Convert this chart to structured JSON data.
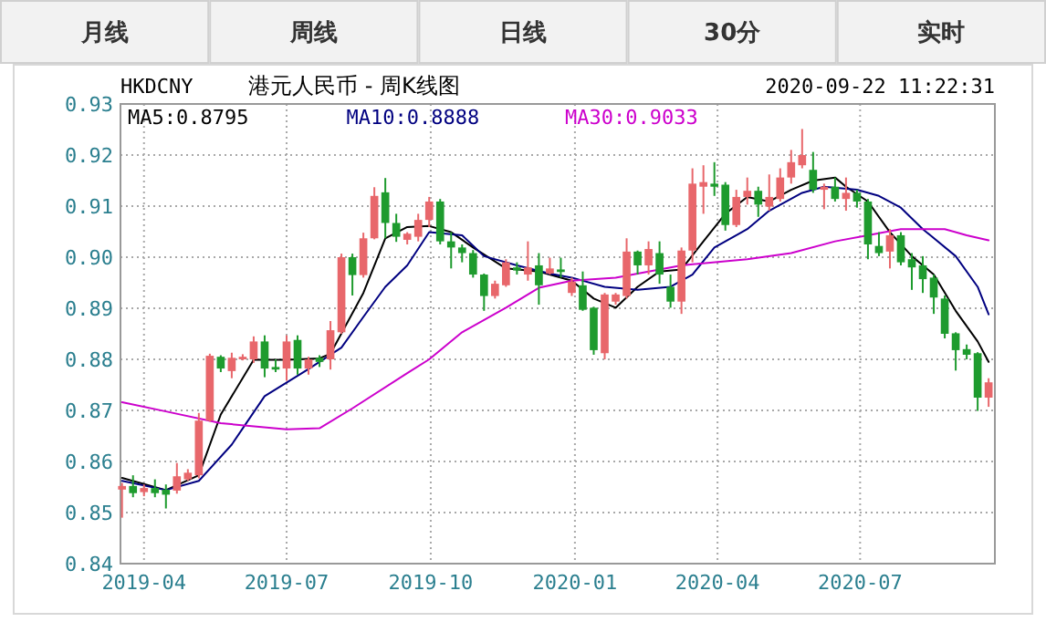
{
  "chart_data": {
    "type": "candlestick",
    "title": "港元人民币 - 周K线图",
    "subtitle": "HKDCNY",
    "annotations": [
      "2020-09-22 11:22:31",
      "月线",
      "周线",
      "日线",
      "30分",
      "实时"
    ],
    "x": [
      "2019-03-18",
      "2019-03-25",
      "2019-04-01",
      "2019-04-08",
      "2019-04-15",
      "2019-04-22",
      "2019-04-29",
      "2019-05-06",
      "2019-05-13",
      "2019-05-20",
      "2019-05-27",
      "2019-06-03",
      "2019-06-10",
      "2019-06-17",
      "2019-06-24",
      "2019-07-01",
      "2019-07-08",
      "2019-07-15",
      "2019-07-22",
      "2019-07-29",
      "2019-08-05",
      "2019-08-12",
      "2019-08-19",
      "2019-08-26",
      "2019-09-02",
      "2019-09-09",
      "2019-09-16",
      "2019-09-23",
      "2019-09-30",
      "2019-10-07",
      "2019-10-14",
      "2019-10-21",
      "2019-10-28",
      "2019-11-04",
      "2019-11-11",
      "2019-11-18",
      "2019-11-25",
      "2019-12-02",
      "2019-12-09",
      "2019-12-16",
      "2019-12-23",
      "2019-12-30",
      "2020-01-06",
      "2020-01-13",
      "2020-01-20",
      "2020-01-27",
      "2020-02-03",
      "2020-02-10",
      "2020-02-17",
      "2020-02-24",
      "2020-03-02",
      "2020-03-09",
      "2020-03-16",
      "2020-03-23",
      "2020-03-30",
      "2020-04-06",
      "2020-04-13",
      "2020-04-20",
      "2020-04-27",
      "2020-05-04",
      "2020-05-11",
      "2020-05-18",
      "2020-05-25",
      "2020-06-01",
      "2020-06-08",
      "2020-06-15",
      "2020-06-22",
      "2020-06-29",
      "2020-07-06",
      "2020-07-13",
      "2020-07-20",
      "2020-07-27",
      "2020-08-03",
      "2020-08-10",
      "2020-08-17",
      "2020-08-24",
      "2020-08-31",
      "2020-09-07",
      "2020-09-14",
      "2020-09-21"
    ],
    "ohlc": [
      [
        0.8545,
        0.8558,
        0.849,
        0.8552
      ],
      [
        0.8552,
        0.8573,
        0.853,
        0.8538
      ],
      [
        0.854,
        0.8555,
        0.8532,
        0.8548
      ],
      [
        0.8548,
        0.8565,
        0.853,
        0.8538
      ],
      [
        0.8545,
        0.8555,
        0.8508,
        0.8535
      ],
      [
        0.8543,
        0.8597,
        0.8537,
        0.8571
      ],
      [
        0.8565,
        0.8585,
        0.8562,
        0.8578
      ],
      [
        0.8573,
        0.8695,
        0.8567,
        0.868
      ],
      [
        0.868,
        0.8811,
        0.8678,
        0.8807
      ],
      [
        0.8805,
        0.8808,
        0.8775,
        0.8782
      ],
      [
        0.8777,
        0.8813,
        0.8763,
        0.8803
      ],
      [
        0.88,
        0.881,
        0.8798,
        0.8805
      ],
      [
        0.88,
        0.8845,
        0.8793,
        0.8835
      ],
      [
        0.8835,
        0.8847,
        0.8765,
        0.8782
      ],
      [
        0.8785,
        0.88,
        0.8775,
        0.878
      ],
      [
        0.8782,
        0.8847,
        0.8758,
        0.8835
      ],
      [
        0.8838,
        0.8847,
        0.877,
        0.8782
      ],
      [
        0.8782,
        0.8805,
        0.877,
        0.88
      ],
      [
        0.8803,
        0.8808,
        0.8785,
        0.8795
      ],
      [
        0.88,
        0.8875,
        0.878,
        0.8857
      ],
      [
        0.8853,
        0.9007,
        0.885,
        0.9
      ],
      [
        0.9,
        0.9007,
        0.8925,
        0.8965
      ],
      [
        0.8965,
        0.9048,
        0.896,
        0.9037
      ],
      [
        0.9037,
        0.9137,
        0.9035,
        0.912
      ],
      [
        0.9127,
        0.9155,
        0.9037,
        0.9067
      ],
      [
        0.9067,
        0.9085,
        0.903,
        0.904
      ],
      [
        0.9034,
        0.9049,
        0.9025,
        0.9046
      ],
      [
        0.904,
        0.9085,
        0.9031,
        0.9073
      ],
      [
        0.9073,
        0.9118,
        0.9059,
        0.9109
      ],
      [
        0.9109,
        0.9114,
        0.9025,
        0.9031
      ],
      [
        0.9031,
        0.9049,
        0.8978,
        0.9019
      ],
      [
        0.9019,
        0.9025,
        0.899,
        0.9008
      ],
      [
        0.9008,
        0.9014,
        0.896,
        0.8966
      ],
      [
        0.8966,
        0.8968,
        0.8895,
        0.8924
      ],
      [
        0.8924,
        0.8954,
        0.8919,
        0.8948
      ],
      [
        0.8945,
        0.8996,
        0.8942,
        0.899
      ],
      [
        0.898,
        0.899,
        0.8966,
        0.8974
      ],
      [
        0.8966,
        0.9031,
        0.8954,
        0.898
      ],
      [
        0.8984,
        0.9008,
        0.8907,
        0.8945
      ],
      [
        0.8968,
        0.8999,
        0.8966,
        0.8978
      ],
      [
        0.8976,
        0.8999,
        0.896,
        0.8971
      ],
      [
        0.893,
        0.896,
        0.8924,
        0.8952
      ],
      [
        0.8945,
        0.8972,
        0.8895,
        0.8897
      ],
      [
        0.8901,
        0.8903,
        0.8809,
        0.8818
      ],
      [
        0.8812,
        0.893,
        0.88,
        0.8927
      ],
      [
        0.8913,
        0.893,
        0.8907,
        0.8927
      ],
      [
        0.8924,
        0.9037,
        0.8919,
        0.9011
      ],
      [
        0.9011,
        0.9013,
        0.8966,
        0.8984
      ],
      [
        0.8984,
        0.9031,
        0.8966,
        0.9016
      ],
      [
        0.9008,
        0.9031,
        0.8948,
        0.8966
      ],
      [
        0.8942,
        0.8966,
        0.8901,
        0.8913
      ],
      [
        0.8913,
        0.9019,
        0.8889,
        0.9013
      ],
      [
        0.9013,
        0.9174,
        0.899,
        0.9144
      ],
      [
        0.9138,
        0.918,
        0.9085,
        0.9147
      ],
      [
        0.9144,
        0.9186,
        0.912,
        0.9138
      ],
      [
        0.9142,
        0.9147,
        0.9052,
        0.9063
      ],
      [
        0.9063,
        0.9132,
        0.9059,
        0.9118
      ],
      [
        0.9118,
        0.9156,
        0.9103,
        0.913
      ],
      [
        0.913,
        0.9138,
        0.9079,
        0.9103
      ],
      [
        0.9099,
        0.9162,
        0.9091,
        0.9118
      ],
      [
        0.9114,
        0.9174,
        0.9109,
        0.9156
      ],
      [
        0.9156,
        0.921,
        0.9144,
        0.9186
      ],
      [
        0.918,
        0.9251,
        0.9174,
        0.92
      ],
      [
        0.9171,
        0.9206,
        0.9126,
        0.9132
      ],
      [
        0.9132,
        0.9144,
        0.9094,
        0.9138
      ],
      [
        0.9138,
        0.9156,
        0.9109,
        0.9114
      ],
      [
        0.9114,
        0.9156,
        0.9091,
        0.9126
      ],
      [
        0.9126,
        0.9132,
        0.9097,
        0.9109
      ],
      [
        0.9109,
        0.9114,
        0.8996,
        0.9025
      ],
      [
        0.9022,
        0.9049,
        0.9002,
        0.9008
      ],
      [
        0.9011,
        0.9055,
        0.8978,
        0.9043
      ],
      [
        0.9043,
        0.9049,
        0.8984,
        0.899
      ],
      [
        0.8996,
        0.9008,
        0.8936,
        0.898
      ],
      [
        0.8984,
        0.9002,
        0.893,
        0.8957
      ],
      [
        0.896,
        0.8966,
        0.8889,
        0.8921
      ],
      [
        0.8919,
        0.8925,
        0.8841,
        0.885
      ],
      [
        0.8851,
        0.8853,
        0.8778,
        0.8818
      ],
      [
        0.882,
        0.8829,
        0.88,
        0.8809
      ],
      [
        0.8812,
        0.8814,
        0.8699,
        0.8725
      ],
      [
        0.8725,
        0.8763,
        0.8707,
        0.8755
      ]
    ],
    "colors": [
      "#e8676b",
      "#1e9b2e",
      "#e8676b",
      "#1e9b2e",
      "#1e9b2e",
      "#e8676b",
      "#e8676b",
      "#e8676b",
      "#e8676b",
      "#1e9b2e",
      "#e8676b",
      "#e8676b",
      "#e8676b",
      "#1e9b2e",
      "#1e9b2e",
      "#e8676b",
      "#1e9b2e",
      "#e8676b",
      "#1e9b2e",
      "#e8676b",
      "#e8676b",
      "#1e9b2e",
      "#e8676b",
      "#e8676b",
      "#1e9b2e",
      "#1e9b2e",
      "#e8676b",
      "#e8676b",
      "#e8676b",
      "#1e9b2e",
      "#1e9b2e",
      "#1e9b2e",
      "#1e9b2e",
      "#1e9b2e",
      "#e8676b",
      "#e8676b",
      "#1e9b2e",
      "#e8676b",
      "#1e9b2e",
      "#e8676b",
      "#1e9b2e",
      "#e8676b",
      "#1e9b2e",
      "#1e9b2e",
      "#e8676b",
      "#e8676b",
      "#e8676b",
      "#1e9b2e",
      "#e8676b",
      "#1e9b2e",
      "#1e9b2e",
      "#e8676b",
      "#e8676b",
      "#e8676b",
      "#1e9b2e",
      "#1e9b2e",
      "#e8676b",
      "#e8676b",
      "#1e9b2e",
      "#e8676b",
      "#e8676b",
      "#e8676b",
      "#e8676b",
      "#1e9b2e",
      "#e8676b",
      "#1e9b2e",
      "#e8676b",
      "#1e9b2e",
      "#1e9b2e",
      "#1e9b2e",
      "#e8676b",
      "#1e9b2e",
      "#1e9b2e",
      "#1e9b2e",
      "#1e9b2e",
      "#1e9b2e",
      "#1e9b2e",
      "#1e9b2e",
      "#1e9b2e",
      "#e8676b"
    ],
    "series": [
      {
        "name": "MA5:0.8795",
        "type": "line",
        "color": "#000000",
        "x": [
          "2019-03-18",
          "2019-04-15",
          "2019-05-06",
          "2019-05-20",
          "2019-06-10",
          "2019-07-01",
          "2019-07-22",
          "2019-07-29",
          "2019-08-19",
          "2019-09-02",
          "2019-09-16",
          "2019-09-30",
          "2019-10-14",
          "2019-10-28",
          "2019-11-18",
          "2019-12-09",
          "2019-12-30",
          "2020-01-13",
          "2020-01-27",
          "2020-02-10",
          "2020-02-24",
          "2020-03-09",
          "2020-03-23",
          "2020-04-06",
          "2020-04-20",
          "2020-05-04",
          "2020-05-18",
          "2020-06-01",
          "2020-06-15",
          "2020-06-22",
          "2020-07-06",
          "2020-07-20",
          "2020-08-03",
          "2020-08-17",
          "2020-08-31",
          "2020-09-14",
          "2020-09-21"
        ],
        "values": [
          0.8568,
          0.8544,
          0.8573,
          0.8692,
          0.8799,
          0.8799,
          0.8802,
          0.8811,
          0.893,
          0.9037,
          0.9059,
          0.9061,
          0.9049,
          0.9019,
          0.8978,
          0.8972,
          0.8954,
          0.8919,
          0.8901,
          0.8942,
          0.8972,
          0.8976,
          0.9031,
          0.9085,
          0.9118,
          0.9109,
          0.9132,
          0.915,
          0.9156,
          0.9138,
          0.9109,
          0.9049,
          0.9002,
          0.8966,
          0.8895,
          0.8835,
          0.8795
        ]
      },
      {
        "name": "MA10:0.8888",
        "type": "line",
        "color": "#000080",
        "x": [
          "2019-03-18",
          "2019-04-15",
          "2019-05-06",
          "2019-05-27",
          "2019-06-17",
          "2019-07-15",
          "2019-08-05",
          "2019-08-19",
          "2019-09-02",
          "2019-09-16",
          "2019-09-30",
          "2019-10-21",
          "2019-11-04",
          "2019-11-25",
          "2019-12-16",
          "2019-12-30",
          "2020-01-20",
          "2020-02-10",
          "2020-03-02",
          "2020-03-16",
          "2020-03-30",
          "2020-04-20",
          "2020-05-04",
          "2020-05-25",
          "2020-06-08",
          "2020-06-29",
          "2020-07-13",
          "2020-07-27",
          "2020-08-10",
          "2020-08-31",
          "2020-09-14",
          "2020-09-21"
        ],
        "values": [
          0.8562,
          0.8544,
          0.8562,
          0.8633,
          0.8728,
          0.8781,
          0.8823,
          0.8883,
          0.8942,
          0.8984,
          0.9049,
          0.9043,
          0.9002,
          0.8984,
          0.8968,
          0.896,
          0.8942,
          0.8936,
          0.8942,
          0.8966,
          0.9019,
          0.9055,
          0.9091,
          0.9126,
          0.9138,
          0.9132,
          0.912,
          0.9097,
          0.9055,
          0.9002,
          0.8942,
          0.8888
        ]
      },
      {
        "name": "MA30:0.9033",
        "type": "line",
        "color": "#cc00cc",
        "x": [
          "2019-03-18",
          "2019-04-15",
          "2019-05-20",
          "2019-07-01",
          "2019-07-22",
          "2019-08-12",
          "2019-09-16",
          "2019-09-30",
          "2019-10-21",
          "2019-11-18",
          "2019-12-09",
          "2019-12-30",
          "2020-01-27",
          "2020-02-17",
          "2020-03-09",
          "2020-04-20",
          "2020-05-18",
          "2020-06-15",
          "2020-07-06",
          "2020-07-27",
          "2020-08-24",
          "2020-09-07",
          "2020-09-21"
        ],
        "values": [
          0.8716,
          0.8698,
          0.8675,
          0.8663,
          0.8665,
          0.8704,
          0.8773,
          0.88,
          0.8853,
          0.8901,
          0.894,
          0.8954,
          0.896,
          0.8972,
          0.8984,
          0.8996,
          0.9008,
          0.9031,
          0.9043,
          0.9055,
          0.9055,
          0.9043,
          0.9033
        ]
      }
    ],
    "xlim": [
      "2019-03-17",
      "2020-09-25"
    ],
    "xticks": [
      {
        "value": "2019-04-01",
        "label": "2019-04"
      },
      {
        "value": "2019-07-01",
        "label": "2019-07"
      },
      {
        "value": "2019-10-01",
        "label": "2019-10"
      },
      {
        "value": "2020-01-01",
        "label": "2020-01"
      },
      {
        "value": "2020-04-01",
        "label": "2020-04"
      },
      {
        "value": "2020-07-01",
        "label": "2020-07"
      }
    ],
    "ylim": [
      0.84,
      0.93
    ],
    "yticks": [
      0.84,
      0.85,
      0.86,
      0.87,
      0.88,
      0.89,
      {
        "value": 0.9,
        "label": "0.90"
      },
      0.91,
      0.92,
      0.93
    ],
    "grid": true,
    "legend": "top"
  }
}
